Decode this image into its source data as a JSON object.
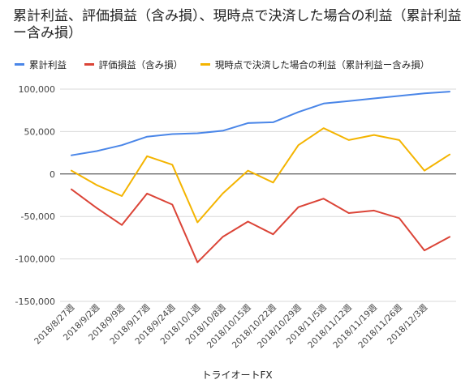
{
  "chart_data": {
    "type": "line",
    "title": "累計利益、評価損益（含み損）、現時点で決済した場合の利益（累計利益ー含み損）",
    "xlabel": "トライオートFX",
    "ylabel": "",
    "ylim": [
      -150000,
      100000
    ],
    "yticks": [
      100000,
      50000,
      0,
      -50000,
      -100000,
      -150000
    ],
    "ytick_labels": [
      "100,000",
      "50,000",
      "0",
      "-50,000",
      "-100,000",
      "-150,000"
    ],
    "x": [
      "2018/8/27週",
      "2018/9/2週",
      "2018/9/9週",
      "2018/9/17週",
      "2018/9/24週",
      "2018/10/1週",
      "2018/10/8週",
      "2018/10/15週",
      "2018/10/22週",
      "2018/10/29週",
      "2018/11/5週",
      "2018/11/12週",
      "2018/11/19週",
      "2018/11/26週",
      "2018/12/3週",
      ""
    ],
    "x_tick_labels": [
      "2018/8/27週",
      "2018/9/2週",
      "2018/9/9週",
      "2018/9/17週",
      "2018/9/24週",
      "2018/10/1週",
      "2018/10/8週",
      "2018/10/15週",
      "2018/10/22週",
      "2018/10/29週",
      "2018/11/5週",
      "2018/11/12週",
      "2018/11/19週",
      "2018/11/26週",
      "2018/12/3週"
    ],
    "series": [
      {
        "name": "累計利益",
        "color": "#4a86e8",
        "values": [
          22000,
          27000,
          34000,
          44000,
          47000,
          48000,
          51000,
          60000,
          61000,
          73000,
          83000,
          86000,
          89000,
          92000,
          95000,
          97000
        ]
      },
      {
        "name": "評価損益（含み損）",
        "color": "#db4437",
        "values": [
          -18000,
          -40000,
          -60000,
          -23000,
          -36000,
          -104000,
          -74000,
          -56000,
          -71000,
          -39000,
          -29000,
          -46000,
          -43000,
          -52000,
          -90000,
          -74000
        ]
      },
      {
        "name": "現時点で決済した場合の利益（累計利益ー含み損）",
        "color": "#f4b400",
        "values": [
          4000,
          -13000,
          -26000,
          21000,
          11000,
          -57000,
          -23000,
          4000,
          -10000,
          34000,
          54000,
          40000,
          46000,
          40000,
          4000,
          23000
        ]
      }
    ],
    "grid": true,
    "legend_position": "top-left"
  }
}
